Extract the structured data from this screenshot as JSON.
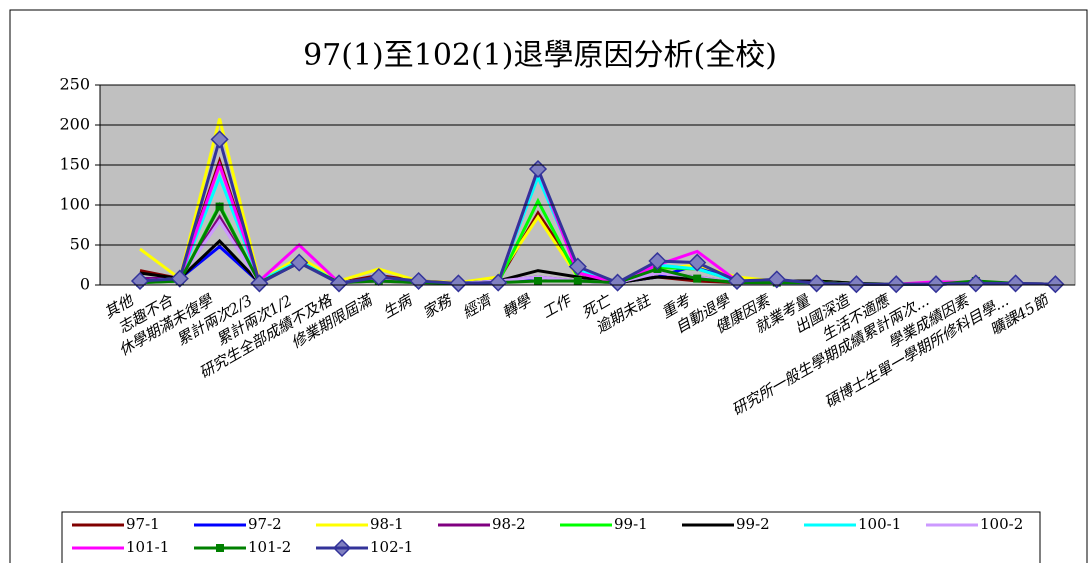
{
  "chart_data": {
    "type": "line",
    "title": "97(1)至102(1)退學原因分析(全校)",
    "categories": [
      "其他",
      "志趣不合",
      "休學期滿未復學",
      "累計兩次2/3",
      "累計兩次1/2",
      "研究生全部成績不及格",
      "修業期限屆滿",
      "生病",
      "家務",
      "經濟",
      "轉學",
      "工作",
      "死亡",
      "逾期未註",
      "重考",
      "自動退學",
      "健康因素",
      "就業考量",
      "出國深造",
      "生活不適應",
      "研究所一般生學期成績累計兩次...",
      "學業成績因素",
      "碩博士生單一學期所修科目學...",
      "曠課45節"
    ],
    "ylim": [
      0,
      250
    ],
    "yticks": [
      0,
      50,
      100,
      150,
      200,
      250
    ],
    "series": [
      {
        "name": "97-1",
        "color": "#800000",
        "values": [
          18,
          8,
          155,
          5,
          30,
          3,
          12,
          5,
          3,
          5,
          90,
          15,
          3,
          10,
          5,
          3,
          5,
          5,
          2,
          1,
          1,
          2,
          2,
          1
        ]
      },
      {
        "name": "97-2",
        "color": "#0000ff",
        "values": [
          8,
          8,
          48,
          3,
          28,
          3,
          8,
          3,
          2,
          5,
          5,
          5,
          3,
          10,
          25,
          5,
          3,
          3,
          1,
          1,
          1,
          2,
          2,
          1
        ]
      },
      {
        "name": "98-1",
        "color": "#ffff00",
        "values": [
          45,
          8,
          208,
          5,
          35,
          5,
          20,
          5,
          3,
          10,
          85,
          10,
          3,
          20,
          25,
          10,
          5,
          5,
          1,
          1,
          1,
          3,
          2,
          1
        ]
      },
      {
        "name": "98-2",
        "color": "#800080",
        "values": [
          8,
          8,
          85,
          3,
          28,
          3,
          8,
          3,
          2,
          5,
          10,
          5,
          3,
          15,
          10,
          3,
          3,
          3,
          1,
          1,
          1,
          2,
          2,
          1
        ]
      },
      {
        "name": "99-1",
        "color": "#00ff00",
        "values": [
          3,
          5,
          100,
          3,
          28,
          3,
          5,
          3,
          2,
          3,
          105,
          10,
          3,
          22,
          20,
          5,
          3,
          5,
          2,
          1,
          1,
          3,
          2,
          1
        ]
      },
      {
        "name": "99-2",
        "color": "#000000",
        "values": [
          15,
          8,
          55,
          3,
          28,
          3,
          8,
          3,
          2,
          5,
          18,
          10,
          3,
          10,
          8,
          3,
          5,
          5,
          2,
          1,
          1,
          2,
          2,
          1
        ]
      },
      {
        "name": "100-1",
        "color": "#00ffff",
        "values": [
          5,
          8,
          135,
          5,
          30,
          3,
          8,
          3,
          2,
          5,
          135,
          20,
          3,
          25,
          20,
          5,
          3,
          3,
          1,
          1,
          1,
          2,
          2,
          1
        ]
      },
      {
        "name": "100-2",
        "color": "#cc99ff",
        "values": [
          5,
          8,
          80,
          3,
          28,
          3,
          8,
          3,
          2,
          5,
          10,
          5,
          3,
          15,
          10,
          3,
          3,
          3,
          1,
          1,
          1,
          2,
          2,
          1
        ]
      },
      {
        "name": "101-1",
        "color": "#ff00ff",
        "values": [
          3,
          8,
          150,
          5,
          50,
          3,
          5,
          3,
          2,
          3,
          145,
          15,
          3,
          25,
          42,
          5,
          4,
          3,
          1,
          1,
          4,
          3,
          2,
          1
        ]
      },
      {
        "name": "101-2",
        "color": "#008000",
        "marker": "square",
        "values": [
          3,
          5,
          98,
          3,
          28,
          3,
          5,
          3,
          2,
          3,
          5,
          5,
          3,
          20,
          8,
          3,
          3,
          3,
          1,
          1,
          1,
          5,
          2,
          1
        ]
      },
      {
        "name": "102-1",
        "color": "#333399",
        "marker": "diamond",
        "values": [
          5,
          8,
          182,
          2,
          28,
          2,
          10,
          5,
          2,
          3,
          145,
          23,
          3,
          30,
          28,
          5,
          7,
          2,
          1,
          1,
          1,
          2,
          2,
          1
        ]
      }
    ]
  }
}
